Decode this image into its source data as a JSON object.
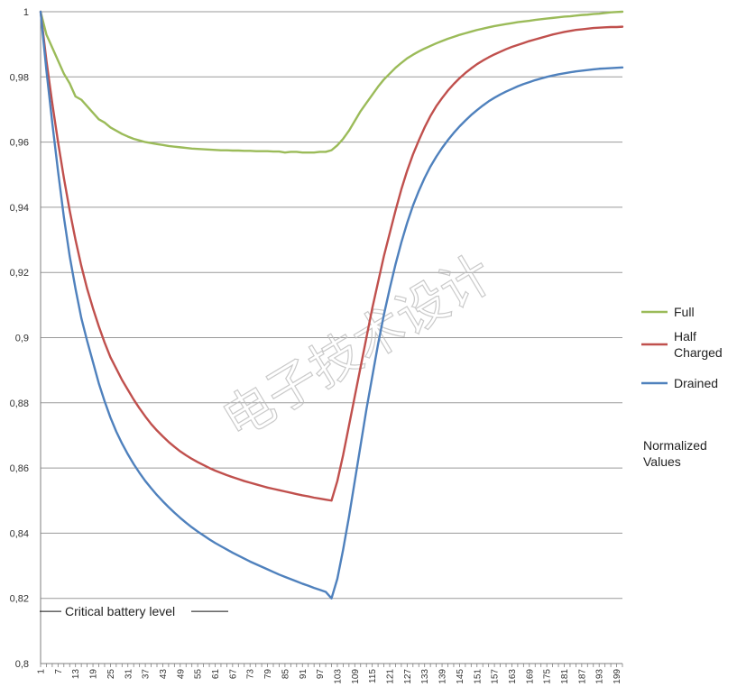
{
  "watermark": "电子技术设计",
  "chart_data": {
    "type": "line",
    "ylim": [
      0.8,
      1.0
    ],
    "xlim": [
      1,
      201
    ],
    "yticks": [
      {
        "value": 1.0,
        "label": "1"
      },
      {
        "value": 0.98,
        "label": "0,98"
      },
      {
        "value": 0.96,
        "label": "0,96"
      },
      {
        "value": 0.94,
        "label": "0,94"
      },
      {
        "value": 0.92,
        "label": "0,92"
      },
      {
        "value": 0.9,
        "label": "0,9"
      },
      {
        "value": 0.88,
        "label": "0,88"
      },
      {
        "value": 0.86,
        "label": "0,86"
      },
      {
        "value": 0.84,
        "label": "0,84"
      },
      {
        "value": 0.82,
        "label": "0,82"
      },
      {
        "value": 0.8,
        "label": "0,8"
      }
    ],
    "xticks": [
      1,
      7,
      13,
      19,
      25,
      31,
      37,
      43,
      49,
      55,
      61,
      67,
      73,
      79,
      85,
      91,
      97,
      103,
      109,
      115,
      121,
      127,
      133,
      139,
      145,
      151,
      157,
      163,
      169,
      175,
      181,
      187,
      193,
      199
    ],
    "grid": "horizontal",
    "legend_position": "right",
    "legend_note": [
      "Normalized",
      "Values"
    ],
    "series": [
      {
        "name": "Full",
        "name_lines": [
          "Full"
        ],
        "color": "#9bbb59",
        "x": [
          1,
          3,
          5,
          7,
          9,
          11,
          13,
          15,
          17,
          19,
          21,
          23,
          25,
          27,
          29,
          31,
          33,
          35,
          37,
          39,
          41,
          43,
          45,
          47,
          49,
          51,
          53,
          55,
          57,
          59,
          61,
          63,
          65,
          67,
          69,
          71,
          73,
          75,
          77,
          79,
          81,
          83,
          85,
          87,
          89,
          91,
          93,
          95,
          97,
          99,
          101,
          103,
          105,
          107,
          109,
          111,
          113,
          115,
          117,
          119,
          121,
          123,
          125,
          127,
          129,
          131,
          133,
          135,
          137,
          139,
          141,
          143,
          145,
          147,
          149,
          151,
          153,
          155,
          157,
          159,
          161,
          163,
          165,
          167,
          169,
          171,
          173,
          175,
          177,
          179,
          181,
          183,
          185,
          187,
          189,
          191,
          193,
          195,
          197,
          199,
          201
        ],
        "y": [
          1.0,
          0.993,
          0.989,
          0.985,
          0.981,
          0.978,
          0.974,
          0.973,
          0.971,
          0.969,
          0.967,
          0.966,
          0.9645,
          0.9635,
          0.9625,
          0.9617,
          0.961,
          0.9605,
          0.96,
          0.9597,
          0.9594,
          0.9591,
          0.9588,
          0.9586,
          0.9584,
          0.9582,
          0.958,
          0.9579,
          0.9578,
          0.9577,
          0.9576,
          0.9575,
          0.9575,
          0.9574,
          0.9574,
          0.9573,
          0.9573,
          0.9572,
          0.9572,
          0.9572,
          0.9571,
          0.9571,
          0.9568,
          0.957,
          0.957,
          0.9568,
          0.9568,
          0.9568,
          0.957,
          0.957,
          0.9575,
          0.959,
          0.961,
          0.9635,
          0.9665,
          0.9695,
          0.972,
          0.9745,
          0.977,
          0.9792,
          0.981,
          0.9828,
          0.9843,
          0.9857,
          0.9868,
          0.9878,
          0.9887,
          0.9895,
          0.9903,
          0.991,
          0.9917,
          0.9923,
          0.9929,
          0.9934,
          0.9939,
          0.9944,
          0.9948,
          0.9952,
          0.9956,
          0.9959,
          0.9962,
          0.9965,
          0.9968,
          0.997,
          0.9972,
          0.9975,
          0.9977,
          0.9979,
          0.9981,
          0.9983,
          0.9985,
          0.9986,
          0.9988,
          0.999,
          0.9991,
          0.9993,
          0.9994,
          0.9996,
          0.9998,
          0.9999,
          1.0
        ]
      },
      {
        "name": "Half Charged",
        "name_lines": [
          "Half",
          "Charged"
        ],
        "color": "#c0504d",
        "x": [
          1,
          3,
          5,
          7,
          9,
          11,
          13,
          15,
          17,
          19,
          21,
          23,
          25,
          27,
          29,
          31,
          33,
          35,
          37,
          39,
          41,
          43,
          45,
          47,
          49,
          51,
          53,
          55,
          57,
          59,
          61,
          63,
          65,
          67,
          69,
          71,
          73,
          75,
          77,
          79,
          81,
          83,
          85,
          87,
          89,
          91,
          93,
          95,
          97,
          99,
          101,
          103,
          105,
          107,
          109,
          111,
          113,
          115,
          117,
          119,
          121,
          123,
          125,
          127,
          129,
          131,
          133,
          135,
          137,
          139,
          141,
          143,
          145,
          147,
          149,
          151,
          153,
          155,
          157,
          159,
          161,
          163,
          165,
          167,
          169,
          171,
          173,
          175,
          177,
          179,
          181,
          183,
          185,
          187,
          189,
          191,
          193,
          195,
          197,
          199,
          201
        ],
        "y": [
          1.0,
          0.985,
          0.972,
          0.96,
          0.949,
          0.939,
          0.93,
          0.922,
          0.915,
          0.909,
          0.9035,
          0.8985,
          0.894,
          0.8905,
          0.887,
          0.884,
          0.881,
          0.8783,
          0.8758,
          0.8735,
          0.8715,
          0.8697,
          0.868,
          0.8665,
          0.8651,
          0.8639,
          0.8628,
          0.8618,
          0.8609,
          0.86,
          0.8592,
          0.8585,
          0.8578,
          0.8572,
          0.8566,
          0.856,
          0.8555,
          0.855,
          0.8545,
          0.854,
          0.8536,
          0.8532,
          0.8528,
          0.8524,
          0.852,
          0.8516,
          0.8513,
          0.8509,
          0.8506,
          0.8503,
          0.85,
          0.856,
          0.864,
          0.873,
          0.882,
          0.891,
          0.9,
          0.909,
          0.917,
          0.925,
          0.932,
          0.939,
          0.9455,
          0.9512,
          0.9562,
          0.9605,
          0.9645,
          0.968,
          0.971,
          0.9735,
          0.9758,
          0.9778,
          0.9796,
          0.9812,
          0.9826,
          0.9839,
          0.985,
          0.986,
          0.9869,
          0.9877,
          0.9885,
          0.9892,
          0.9898,
          0.9904,
          0.991,
          0.9915,
          0.992,
          0.9925,
          0.993,
          0.9934,
          0.9938,
          0.9941,
          0.9944,
          0.9946,
          0.9948,
          0.995,
          0.9951,
          0.9952,
          0.9953,
          0.9953,
          0.9954
        ]
      },
      {
        "name": "Drained",
        "name_lines": [
          "Drained"
        ],
        "color": "#4f81bd",
        "x": [
          1,
          3,
          5,
          7,
          9,
          11,
          13,
          15,
          17,
          19,
          21,
          23,
          25,
          27,
          29,
          31,
          33,
          35,
          37,
          39,
          41,
          43,
          45,
          47,
          49,
          51,
          53,
          55,
          57,
          59,
          61,
          63,
          65,
          67,
          69,
          71,
          73,
          75,
          77,
          79,
          81,
          83,
          85,
          87,
          89,
          91,
          93,
          95,
          97,
          99,
          101,
          103,
          105,
          107,
          109,
          111,
          113,
          115,
          117,
          119,
          121,
          123,
          125,
          127,
          129,
          131,
          133,
          135,
          137,
          139,
          141,
          143,
          145,
          147,
          149,
          151,
          153,
          155,
          157,
          159,
          161,
          163,
          165,
          167,
          169,
          171,
          173,
          175,
          177,
          179,
          181,
          183,
          185,
          187,
          189,
          191,
          193,
          195,
          197,
          199,
          201
        ],
        "y": [
          1.0,
          0.982,
          0.966,
          0.951,
          0.937,
          0.925,
          0.915,
          0.906,
          0.899,
          0.8925,
          0.886,
          0.8805,
          0.8755,
          0.8712,
          0.8675,
          0.8642,
          0.8612,
          0.8585,
          0.856,
          0.8538,
          0.8517,
          0.8498,
          0.848,
          0.8463,
          0.8447,
          0.8432,
          0.8418,
          0.8405,
          0.8393,
          0.8381,
          0.837,
          0.836,
          0.835,
          0.834,
          0.8331,
          0.8322,
          0.8313,
          0.8305,
          0.8297,
          0.8289,
          0.8281,
          0.8273,
          0.8266,
          0.8259,
          0.8252,
          0.8245,
          0.8239,
          0.8232,
          0.8226,
          0.822,
          0.82,
          0.826,
          0.835,
          0.845,
          0.856,
          0.867,
          0.878,
          0.888,
          0.898,
          0.907,
          0.915,
          0.9225,
          0.9292,
          0.9352,
          0.9405,
          0.945,
          0.949,
          0.9525,
          0.9555,
          0.9582,
          0.9606,
          0.9628,
          0.9648,
          0.9666,
          0.9683,
          0.9698,
          0.9712,
          0.9725,
          0.9736,
          0.9746,
          0.9755,
          0.9763,
          0.9771,
          0.9778,
          0.9784,
          0.979,
          0.9795,
          0.98,
          0.9804,
          0.9808,
          0.9811,
          0.9814,
          0.9817,
          0.9819,
          0.9821,
          0.9823,
          0.9825,
          0.9826,
          0.9827,
          0.9828,
          0.9829
        ]
      }
    ],
    "annotation": {
      "text": "Critical battery level",
      "y": 0.816
    }
  }
}
